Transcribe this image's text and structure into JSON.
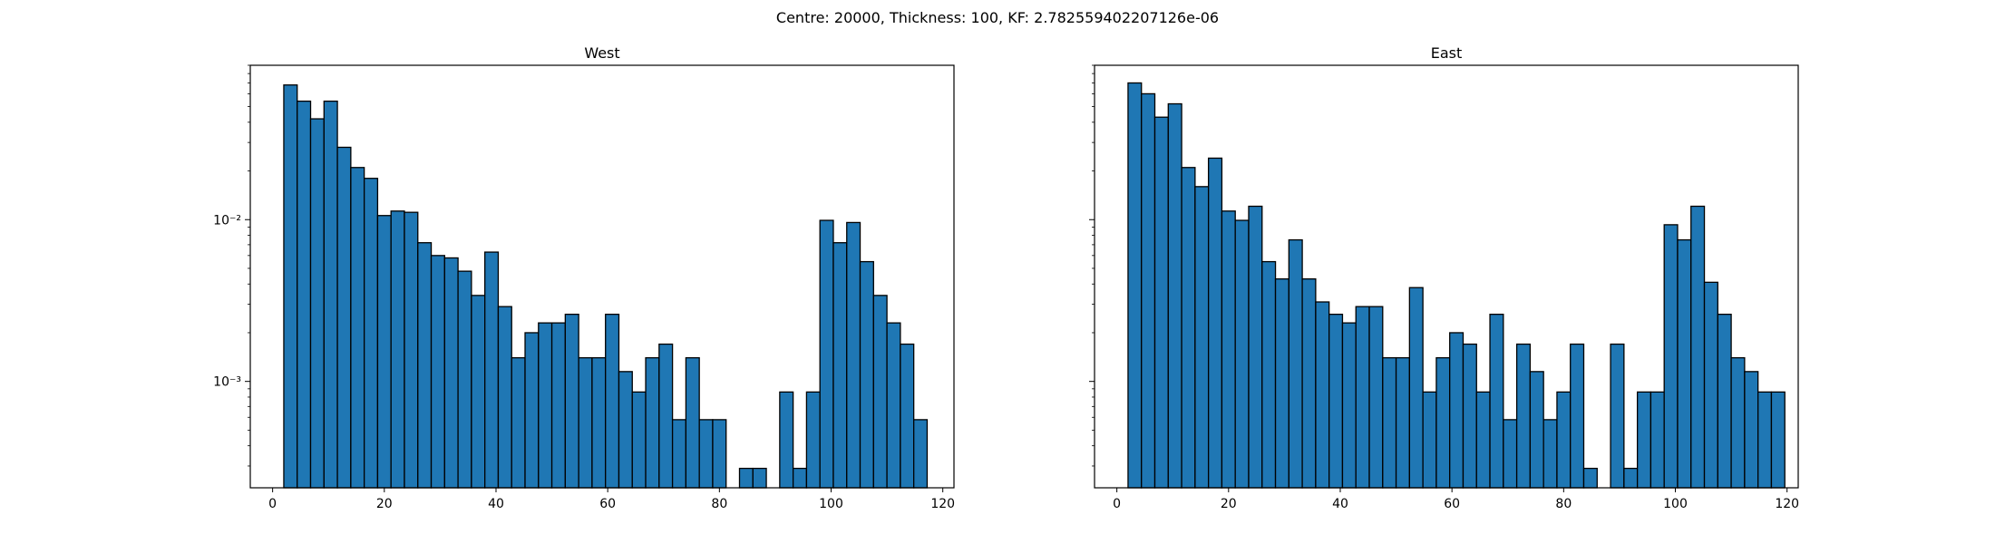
{
  "figure": {
    "suptitle": "Centre: 20000, Thickness: 100, KF: 2.782559402207126e-06",
    "bar_color": "#1f77b4",
    "edge_color": "#000000"
  },
  "chart_data": [
    {
      "type": "bar",
      "title": "West",
      "xlabel": "",
      "ylabel": "",
      "yscale": "log",
      "xlim": [
        -4,
        122
      ],
      "ylim": [
        0.00022,
        0.09
      ],
      "xticks": [
        0,
        20,
        40,
        60,
        80,
        100,
        120
      ],
      "yticks": [
        {
          "value": 0.01,
          "label": "10⁻²"
        },
        {
          "value": 0.001,
          "label": "10⁻³"
        }
      ],
      "grid": false,
      "bin_start": 2,
      "bin_width": 2.4,
      "values": [
        0.068,
        0.054,
        0.042,
        0.054,
        0.028,
        0.021,
        0.018,
        0.0106,
        0.0113,
        0.0111,
        0.0072,
        0.006,
        0.0058,
        0.0048,
        0.0034,
        0.0063,
        0.0029,
        0.0014,
        0.002,
        0.0023,
        0.0023,
        0.0026,
        0.0014,
        0.0014,
        0.0026,
        0.00115,
        0.00086,
        0.0014,
        0.0017,
        0.00058,
        0.0014,
        0.00058,
        0.00058,
        0,
        0.00029,
        0.00029,
        0,
        0.00086,
        0.00029,
        0.00086,
        0.0099,
        0.0072,
        0.0096,
        0.0055,
        0.0034,
        0.0023,
        0.0017,
        0.00058
      ]
    },
    {
      "type": "bar",
      "title": "East",
      "xlabel": "",
      "ylabel": "",
      "yscale": "log",
      "xlim": [
        -4,
        122
      ],
      "ylim": [
        0.00022,
        0.09
      ],
      "xticks": [
        0,
        20,
        40,
        60,
        80,
        100,
        120
      ],
      "yticks": [
        {
          "value": 0.01,
          "label": "10⁻²"
        },
        {
          "value": 0.001,
          "label": "10⁻³"
        }
      ],
      "grid": false,
      "bin_start": 2,
      "bin_width": 2.4,
      "values": [
        0.07,
        0.06,
        0.043,
        0.052,
        0.021,
        0.016,
        0.024,
        0.0113,
        0.0099,
        0.0121,
        0.0055,
        0.0043,
        0.0075,
        0.0043,
        0.0031,
        0.0026,
        0.0023,
        0.0029,
        0.0029,
        0.0014,
        0.0014,
        0.0038,
        0.00086,
        0.0014,
        0.002,
        0.0017,
        0.00086,
        0.0026,
        0.00058,
        0.0017,
        0.00115,
        0.00058,
        0.00086,
        0.0017,
        0.00029,
        0,
        0.0017,
        0.00029,
        0.00086,
        0.00086,
        0.0093,
        0.0075,
        0.0121,
        0.0041,
        0.0026,
        0.0014,
        0.00115,
        0.00086,
        0.00086
      ]
    }
  ]
}
